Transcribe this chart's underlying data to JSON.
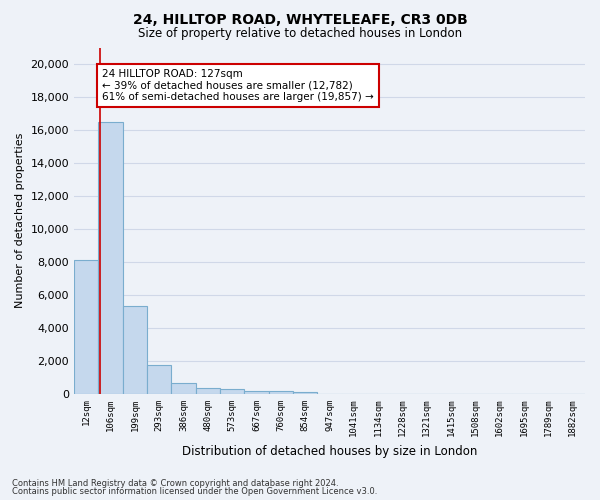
{
  "title": "24, HILLTOP ROAD, WHYTELEAFE, CR3 0DB",
  "subtitle": "Size of property relative to detached houses in London",
  "xlabel": "Distribution of detached houses by size in London",
  "ylabel": "Number of detached properties",
  "bar_color": "#c5d8ed",
  "bar_edge_color": "#7aadce",
  "bin_labels": [
    "12sqm",
    "106sqm",
    "199sqm",
    "293sqm",
    "386sqm",
    "480sqm",
    "573sqm",
    "667sqm",
    "760sqm",
    "854sqm",
    "947sqm",
    "1041sqm",
    "1134sqm",
    "1228sqm",
    "1321sqm",
    "1415sqm",
    "1508sqm",
    "1602sqm",
    "1695sqm",
    "1789sqm",
    "1882sqm"
  ],
  "bar_heights": [
    8100,
    16500,
    5300,
    1750,
    650,
    350,
    270,
    185,
    145,
    110,
    0,
    0,
    0,
    0,
    0,
    0,
    0,
    0,
    0,
    0,
    0
  ],
  "ylim": [
    0,
    21000
  ],
  "yticks": [
    0,
    2000,
    4000,
    6000,
    8000,
    10000,
    12000,
    14000,
    16000,
    18000,
    20000
  ],
  "annotation_text": "24 HILLTOP ROAD: 127sqm\n← 39% of detached houses are smaller (12,782)\n61% of semi-detached houses are larger (19,857) →",
  "annotation_box_color": "#ffffff",
  "annotation_box_edge": "#cc0000",
  "vline_x": 0.548,
  "vline_color": "#cc0000",
  "footnote1": "Contains HM Land Registry data © Crown copyright and database right 2024.",
  "footnote2": "Contains public sector information licensed under the Open Government Licence v3.0.",
  "bg_color": "#eef2f8",
  "grid_color": "#d0d8e8",
  "figsize": [
    6.0,
    5.0
  ],
  "dpi": 100
}
